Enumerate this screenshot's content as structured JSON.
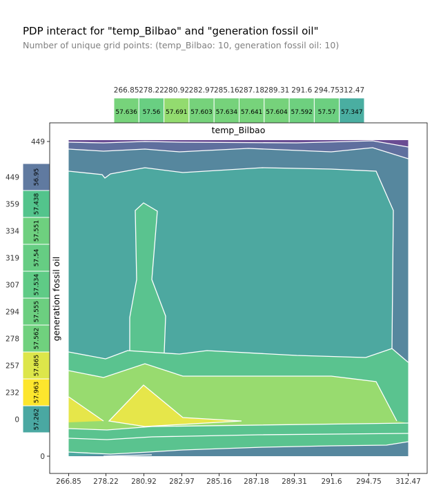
{
  "title": "PDP interact for \"temp_Bilbao\" and \"generation fossil oil\"",
  "subtitle": "Number of unique grid points: (temp_Bilbao: 10, generation fossil oil: 10)",
  "chart_data": {
    "type": "heatmap",
    "xlabel": "temp_Bilbao",
    "ylabel": "generation fossil oil",
    "x_ticks": [
      "266.85",
      "278.22",
      "280.92",
      "282.97",
      "285.16",
      "287.18",
      "289.31",
      "291.6",
      "294.75",
      "312.47"
    ],
    "y_ticks_main": [
      "0",
      "449"
    ],
    "y_ticks_side": [
      "449",
      "359",
      "334",
      "319",
      "307",
      "294",
      "278",
      "257",
      "232",
      "0"
    ],
    "x_marginal": {
      "name": "temp_Bilbao",
      "values": [
        57.636,
        57.56,
        57.691,
        57.603,
        57.634,
        57.641,
        57.604,
        57.592,
        57.57,
        57.347
      ]
    },
    "y_marginal": {
      "name": "generation fossil oil",
      "values": [
        56.95,
        57.438,
        57.551,
        57.54,
        57.534,
        57.555,
        57.562,
        57.865,
        57.963,
        57.262
      ]
    },
    "contour_fill_colors": [
      "#6a4c93",
      "#5f6f9e",
      "#56879e",
      "#4da8a0",
      "#5ac38f",
      "#98db6f",
      "#e6e64a"
    ],
    "marginal_colors": {
      "x": [
        "#77d37b",
        "#69cf82",
        "#93db6f",
        "#76d27b",
        "#76d27b",
        "#77d37b",
        "#76d27b",
        "#6ed07f",
        "#6ccf80",
        "#4aaea1"
      ],
      "y": [
        "#607aa0",
        "#53c48c",
        "#6ed07f",
        "#66cd83",
        "#5fcb86",
        "#6ccf80",
        "#70d17e",
        "#dde64a",
        "#fde62d",
        "#4aa8a2"
      ]
    }
  }
}
